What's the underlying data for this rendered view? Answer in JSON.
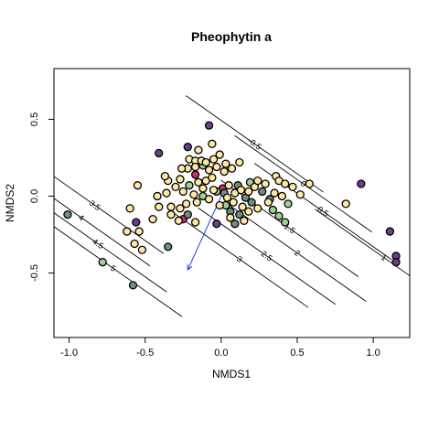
{
  "chart_data": {
    "type": "scatter",
    "title": "Pheophytin a",
    "xlabel": "NMDS1",
    "ylabel": "NMDS2",
    "xlim": [
      -1.1,
      1.24
    ],
    "ylim": [
      -0.92,
      0.83
    ],
    "x_ticks": [
      -1.0,
      -0.5,
      0.0,
      0.5,
      1.0
    ],
    "x_tick_labels": [
      "-1.0",
      "-0.5",
      "0.0",
      "0.5",
      "1.0"
    ],
    "y_ticks": [
      -0.5,
      0.0,
      0.5
    ],
    "y_tick_labels": [
      "-0.5",
      "0.0",
      "0.5"
    ],
    "grid": false,
    "contours": {
      "direction": [
        -0.57,
        -0.82
      ],
      "levels": [
        {
          "value": -0.5,
          "label": "-0.5",
          "label_at": [
            0.22,
            0.34
          ]
        },
        {
          "value": 0,
          "label": "0",
          "label_at": [
            0.54,
            0.08
          ]
        },
        {
          "value": 0.5,
          "label": "0.5",
          "label_at": [
            0.67,
            -0.1
          ]
        },
        {
          "value": 1,
          "label": "1",
          "label_at": [
            1.07,
            -0.4
          ]
        },
        {
          "value": 1.5,
          "label": "1.5",
          "label_at": [
            0.45,
            -0.21
          ]
        },
        {
          "value": 2,
          "label": "2",
          "label_at": [
            0.5,
            -0.37
          ]
        },
        {
          "value": 2.5,
          "label": "2.5",
          "label_at": [
            0.3,
            -0.39
          ]
        },
        {
          "value": 3,
          "label": "3",
          "label_at": [
            0.12,
            -0.41
          ]
        },
        {
          "value": 3.5,
          "label": "3.5",
          "label_at": [
            -0.83,
            -0.06
          ]
        },
        {
          "value": 4,
          "label": "4",
          "label_at": [
            -0.92,
            -0.14
          ]
        },
        {
          "value": 4.5,
          "label": "4.5",
          "label_at": [
            -0.81,
            -0.31
          ]
        },
        {
          "value": 5,
          "label": "5",
          "label_at": [
            -0.71,
            -0.47
          ]
        }
      ]
    },
    "arrow": {
      "from": [
        0.0,
        0.0
      ],
      "to": [
        -0.22,
        -0.48
      ],
      "color": "#1f3fd6"
    },
    "colors": {
      "yellow": "#ffe8a3",
      "green": "#9fcf95",
      "grey": "#6e8f7e",
      "purple": "#6b3f8a",
      "magenta": "#c8306a",
      "point_edge": "#000000",
      "contour": "#000000"
    },
    "points": [
      {
        "x": -0.08,
        "y": 0.46,
        "c": "purple"
      },
      {
        "x": -0.22,
        "y": 0.32,
        "c": "purple"
      },
      {
        "x": -0.41,
        "y": 0.28,
        "c": "purple"
      },
      {
        "x": 0.92,
        "y": 0.08,
        "c": "purple"
      },
      {
        "x": 1.11,
        "y": -0.23,
        "c": "purple"
      },
      {
        "x": 1.15,
        "y": -0.39,
        "c": "purple"
      },
      {
        "x": 1.15,
        "y": -0.43,
        "c": "purple"
      },
      {
        "x": -0.56,
        "y": -0.17,
        "c": "purple"
      },
      {
        "x": -0.03,
        "y": -0.18,
        "c": "purple"
      },
      {
        "x": -0.17,
        "y": 0.14,
        "c": "magenta"
      },
      {
        "x": 0.01,
        "y": 0.05,
        "c": "magenta"
      },
      {
        "x": -0.25,
        "y": -0.15,
        "c": "magenta"
      },
      {
        "x": -1.01,
        "y": -0.12,
        "c": "grey"
      },
      {
        "x": -0.58,
        "y": -0.58,
        "c": "grey"
      },
      {
        "x": -0.35,
        "y": -0.33,
        "c": "grey"
      },
      {
        "x": -0.22,
        "y": -0.12,
        "c": "grey"
      },
      {
        "x": 0.11,
        "y": 0.07,
        "c": "grey"
      },
      {
        "x": 0.16,
        "y": -0.01,
        "c": "grey"
      },
      {
        "x": 0.2,
        "y": -0.04,
        "c": "grey"
      },
      {
        "x": 0.06,
        "y": -0.1,
        "c": "grey"
      },
      {
        "x": 0.12,
        "y": -0.12,
        "c": "grey"
      },
      {
        "x": 0.27,
        "y": 0.03,
        "c": "grey"
      },
      {
        "x": 0.32,
        "y": -0.02,
        "c": "grey"
      },
      {
        "x": 0.09,
        "y": -0.18,
        "c": "grey"
      },
      {
        "x": 0.02,
        "y": 0.02,
        "c": "grey"
      },
      {
        "x": -0.78,
        "y": -0.43,
        "c": "green"
      },
      {
        "x": -0.21,
        "y": 0.07,
        "c": "green"
      },
      {
        "x": -0.12,
        "y": 0.2,
        "c": "green"
      },
      {
        "x": 0.34,
        "y": -0.09,
        "c": "green"
      },
      {
        "x": 0.38,
        "y": -0.13,
        "c": "green"
      },
      {
        "x": 0.42,
        "y": -0.17,
        "c": "green"
      },
      {
        "x": 0.44,
        "y": -0.05,
        "c": "green"
      },
      {
        "x": -0.03,
        "y": 0.03,
        "c": "green"
      },
      {
        "x": 0.03,
        "y": -0.06,
        "c": "green"
      },
      {
        "x": 0.19,
        "y": 0.09,
        "c": "green"
      },
      {
        "x": -0.12,
        "y": 0.0,
        "c": "green"
      },
      {
        "x": -0.21,
        "y": 0.24,
        "c": "yellow"
      },
      {
        "x": -0.17,
        "y": 0.23,
        "c": "yellow"
      },
      {
        "x": -0.13,
        "y": 0.23,
        "c": "yellow"
      },
      {
        "x": -0.1,
        "y": 0.22,
        "c": "yellow"
      },
      {
        "x": -0.05,
        "y": 0.24,
        "c": "yellow"
      },
      {
        "x": -0.17,
        "y": 0.19,
        "c": "yellow"
      },
      {
        "x": -0.22,
        "y": 0.18,
        "c": "yellow"
      },
      {
        "x": -0.26,
        "y": 0.18,
        "c": "yellow"
      },
      {
        "x": -0.08,
        "y": 0.17,
        "c": "yellow"
      },
      {
        "x": -0.03,
        "y": 0.19,
        "c": "yellow"
      },
      {
        "x": 0.02,
        "y": 0.16,
        "c": "yellow"
      },
      {
        "x": 0.07,
        "y": 0.18,
        "c": "yellow"
      },
      {
        "x": 0.12,
        "y": 0.22,
        "c": "yellow"
      },
      {
        "x": -0.01,
        "y": 0.27,
        "c": "yellow"
      },
      {
        "x": -0.15,
        "y": 0.09,
        "c": "yellow"
      },
      {
        "x": -0.1,
        "y": 0.1,
        "c": "yellow"
      },
      {
        "x": -0.06,
        "y": 0.12,
        "c": "yellow"
      },
      {
        "x": -0.12,
        "y": 0.05,
        "c": "yellow"
      },
      {
        "x": -0.18,
        "y": 0.01,
        "c": "yellow"
      },
      {
        "x": -0.25,
        "y": 0.03,
        "c": "yellow"
      },
      {
        "x": -0.3,
        "y": 0.06,
        "c": "yellow"
      },
      {
        "x": -0.35,
        "y": 0.1,
        "c": "yellow"
      },
      {
        "x": -0.27,
        "y": 0.11,
        "c": "yellow"
      },
      {
        "x": -0.36,
        "y": 0.02,
        "c": "yellow"
      },
      {
        "x": -0.42,
        "y": 0.0,
        "c": "yellow"
      },
      {
        "x": -0.33,
        "y": -0.07,
        "c": "yellow"
      },
      {
        "x": -0.41,
        "y": -0.07,
        "c": "yellow"
      },
      {
        "x": -0.27,
        "y": -0.08,
        "c": "yellow"
      },
      {
        "x": -0.23,
        "y": -0.05,
        "c": "yellow"
      },
      {
        "x": -0.16,
        "y": -0.04,
        "c": "yellow"
      },
      {
        "x": -0.08,
        "y": -0.02,
        "c": "yellow"
      },
      {
        "x": -0.05,
        "y": 0.04,
        "c": "yellow"
      },
      {
        "x": 0.05,
        "y": 0.07,
        "c": "yellow"
      },
      {
        "x": 0.09,
        "y": 0.02,
        "c": "yellow"
      },
      {
        "x": 0.13,
        "y": 0.04,
        "c": "yellow"
      },
      {
        "x": 0.18,
        "y": 0.03,
        "c": "yellow"
      },
      {
        "x": 0.22,
        "y": 0.06,
        "c": "yellow"
      },
      {
        "x": 0.24,
        "y": 0.1,
        "c": "yellow"
      },
      {
        "x": 0.29,
        "y": 0.08,
        "c": "yellow"
      },
      {
        "x": 0.36,
        "y": 0.13,
        "c": "yellow"
      },
      {
        "x": 0.38,
        "y": 0.1,
        "c": "yellow"
      },
      {
        "x": 0.42,
        "y": 0.08,
        "c": "yellow"
      },
      {
        "x": 0.47,
        "y": 0.06,
        "c": "yellow"
      },
      {
        "x": 0.4,
        "y": 0.0,
        "c": "yellow"
      },
      {
        "x": 0.35,
        "y": 0.02,
        "c": "yellow"
      },
      {
        "x": 0.31,
        "y": -0.04,
        "c": "yellow"
      },
      {
        "x": 0.24,
        "y": -0.08,
        "c": "yellow"
      },
      {
        "x": 0.18,
        "y": -0.1,
        "c": "yellow"
      },
      {
        "x": 0.14,
        "y": -0.07,
        "c": "yellow"
      },
      {
        "x": 0.08,
        "y": -0.04,
        "c": "yellow"
      },
      {
        "x": 0.04,
        "y": -0.01,
        "c": "yellow"
      },
      {
        "x": -0.01,
        "y": -0.06,
        "c": "yellow"
      },
      {
        "x": 0.06,
        "y": -0.14,
        "c": "yellow"
      },
      {
        "x": 0.15,
        "y": -0.16,
        "c": "yellow"
      },
      {
        "x": 0.58,
        "y": 0.08,
        "c": "yellow"
      },
      {
        "x": 0.82,
        "y": -0.05,
        "c": "yellow"
      },
      {
        "x": 0.52,
        "y": 0.01,
        "c": "yellow"
      },
      {
        "x": -0.06,
        "y": 0.34,
        "c": "yellow"
      },
      {
        "x": -0.37,
        "y": 0.13,
        "c": "yellow"
      },
      {
        "x": -0.55,
        "y": 0.07,
        "c": "yellow"
      },
      {
        "x": -0.6,
        "y": -0.08,
        "c": "yellow"
      },
      {
        "x": -0.45,
        "y": -0.15,
        "c": "yellow"
      },
      {
        "x": -0.54,
        "y": -0.23,
        "c": "yellow"
      },
      {
        "x": -0.62,
        "y": -0.23,
        "c": "yellow"
      },
      {
        "x": -0.57,
        "y": -0.31,
        "c": "yellow"
      },
      {
        "x": -0.52,
        "y": -0.35,
        "c": "yellow"
      },
      {
        "x": -0.17,
        "y": -0.17,
        "c": "yellow"
      },
      {
        "x": -0.33,
        "y": -0.12,
        "c": "yellow"
      },
      {
        "x": -0.28,
        "y": -0.16,
        "c": "yellow"
      },
      {
        "x": 0.03,
        "y": 0.21,
        "c": "yellow"
      },
      {
        "x": -0.15,
        "y": 0.3,
        "c": "yellow"
      }
    ]
  }
}
